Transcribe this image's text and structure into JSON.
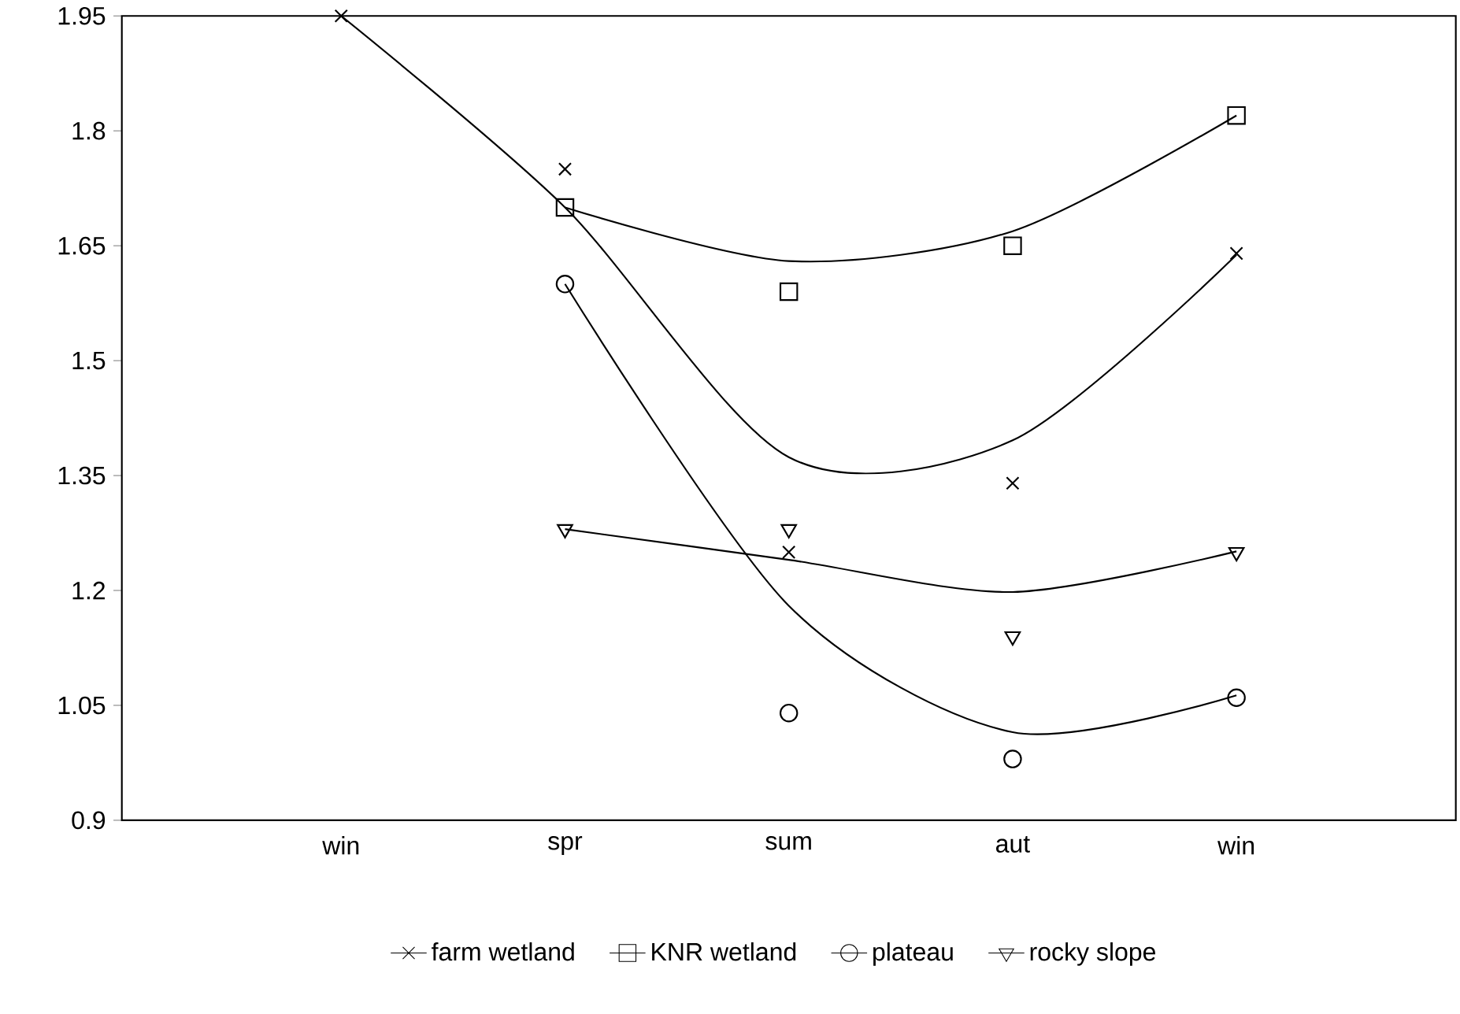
{
  "chart_data": {
    "type": "line",
    "categories": [
      "win",
      "spr",
      "sum",
      "aut",
      "win"
    ],
    "ylim": [
      0.9,
      1.95
    ],
    "yticks": [
      0.9,
      1.05,
      1.2,
      1.35,
      1.5,
      1.65,
      1.8,
      1.95
    ],
    "legend": "bottom",
    "grid": false,
    "series": [
      {
        "name": "farm wetland",
        "type": "scatter",
        "marker": "cross",
        "color": "#000000",
        "values": [
          1.95,
          1.75,
          1.25,
          1.34,
          1.64
        ]
      },
      {
        "name": "KNR wetland",
        "type": "scatter",
        "marker": "square",
        "color": "#000000",
        "values": [
          null,
          1.7,
          1.59,
          1.65,
          1.82
        ]
      },
      {
        "name": "plateau",
        "type": "scatter",
        "marker": "circle",
        "color": "#000000",
        "values": [
          null,
          1.6,
          1.04,
          0.98,
          1.06
        ]
      },
      {
        "name": "rocky slope",
        "type": "scatter",
        "marker": "triangle",
        "color": "#000000",
        "values": [
          null,
          1.28,
          1.28,
          1.14,
          1.25
        ]
      },
      {
        "marker": "none",
        "color": "#000000",
        "values": [
          1.95,
          1.7,
          1.374,
          1.396,
          1.638
        ]
      },
      {
        "marker": "none",
        "color": "#000000",
        "values": [
          null,
          1.7,
          1.63,
          1.669,
          1.82
        ]
      },
      {
        "marker": "none",
        "color": "#000000",
        "values": [
          null,
          1.6,
          1.18,
          1.015,
          1.063
        ]
      },
      {
        "marker": "none",
        "color": "#000000",
        "values": [
          null,
          1.28,
          1.24,
          1.198,
          1.251
        ]
      }
    ]
  }
}
